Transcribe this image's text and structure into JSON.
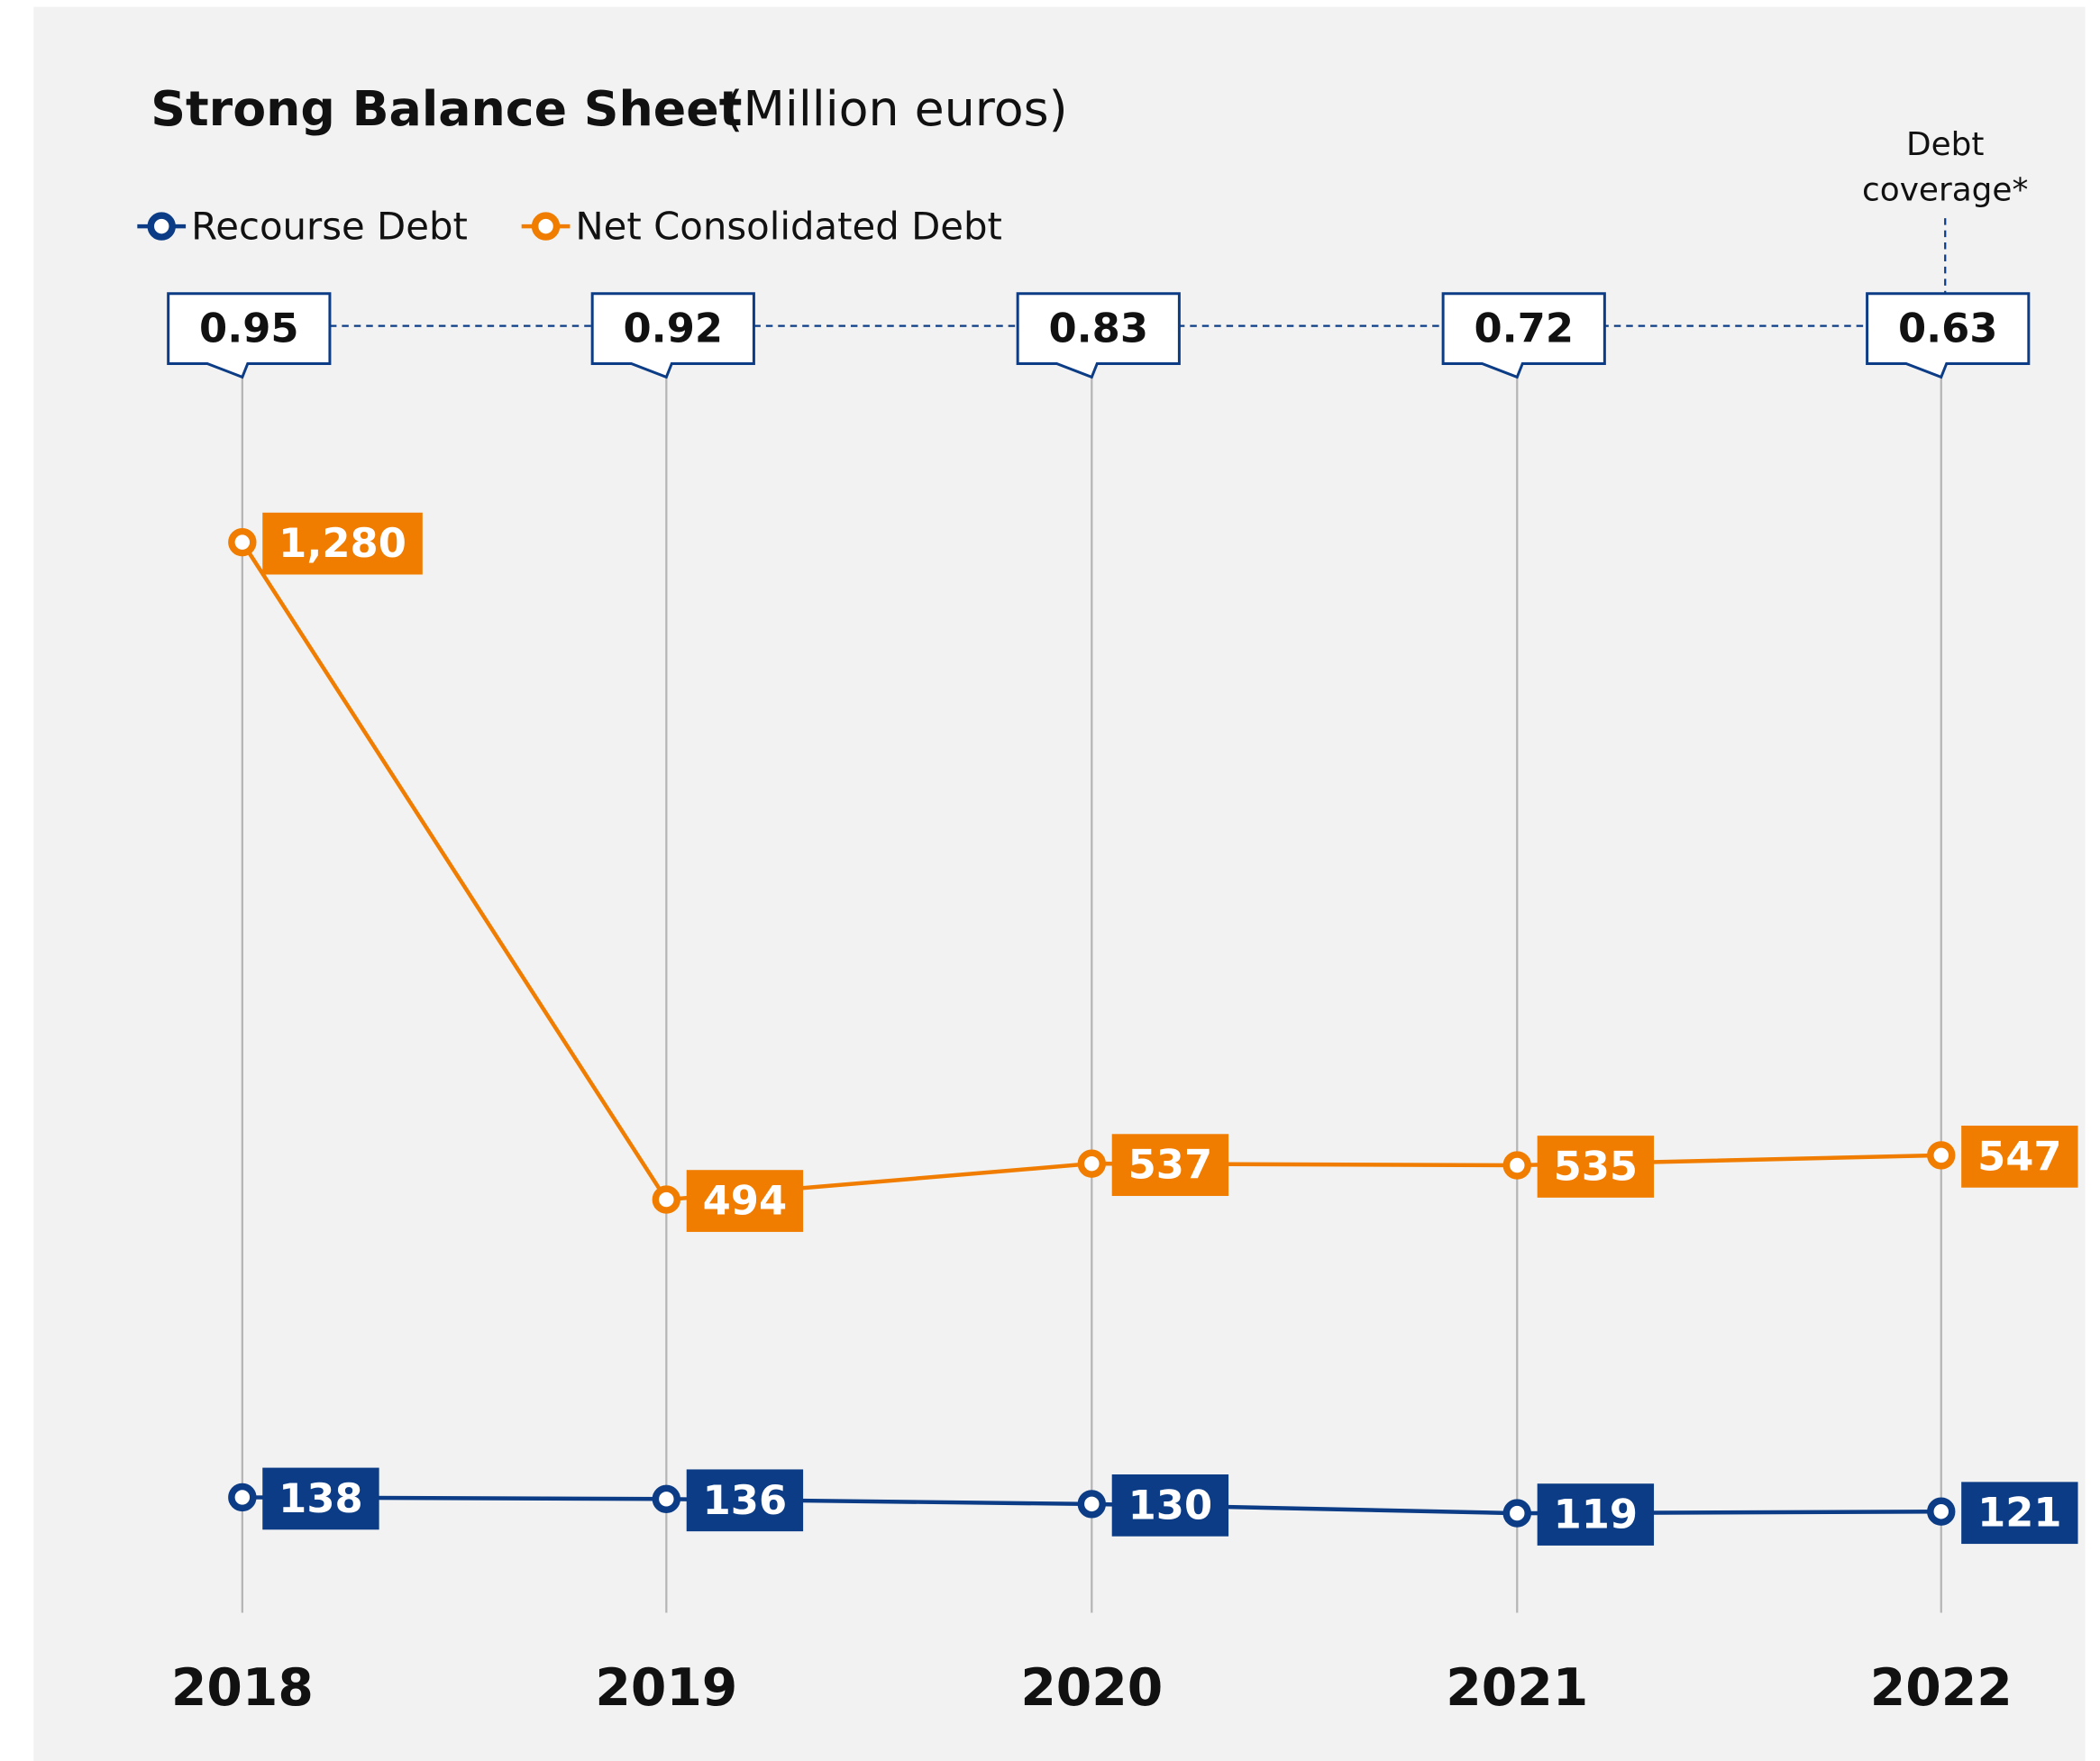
{
  "chart_data": {
    "type": "line",
    "title": "Strong Balance Sheet",
    "subtitle": "(Million euros)",
    "categories": [
      "2018",
      "2019",
      "2020",
      "2021",
      "2022"
    ],
    "series": [
      {
        "name": "Recourse Debt",
        "color": "#0b3c85",
        "values": [
          138,
          136,
          130,
          119,
          121
        ]
      },
      {
        "name": "Net Consolidated Debt",
        "color": "#f07d00",
        "values": [
          1280,
          494,
          537,
          535,
          547
        ],
        "value_labels": [
          "1,280",
          "494",
          "537",
          "535",
          "547"
        ]
      }
    ],
    "debt_coverage": {
      "name": "Debt coverage*",
      "values": [
        0.95,
        0.92,
        0.83,
        0.72,
        0.63
      ]
    },
    "ylim": [
      0,
      1500
    ],
    "grid": true
  }
}
